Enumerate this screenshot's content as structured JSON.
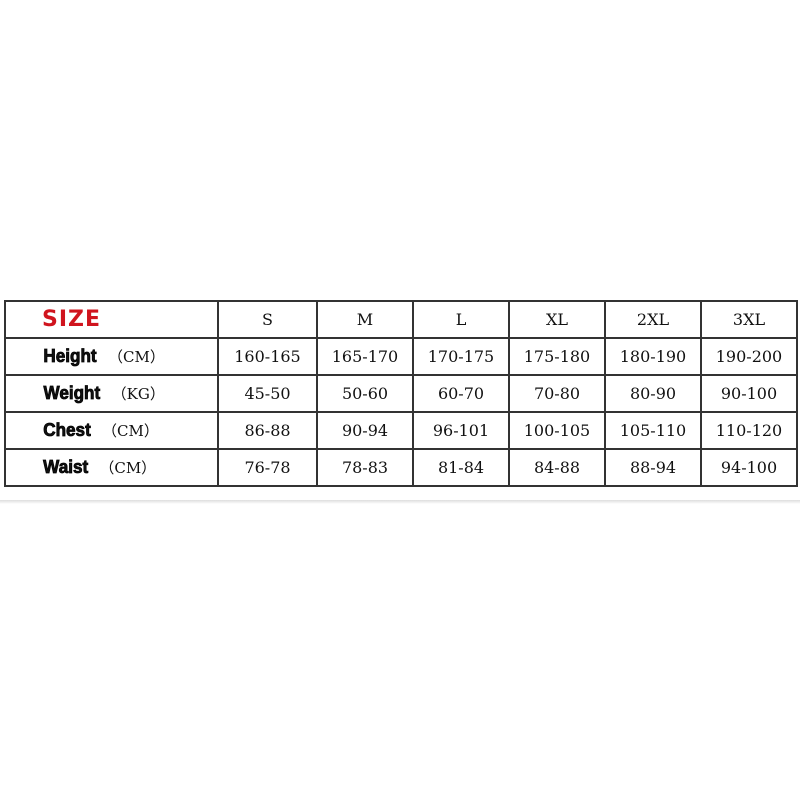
{
  "table": {
    "header_label": "SIZE",
    "header_color": "#d0141e",
    "sizes": [
      "S",
      "M",
      "L",
      "XL",
      "2XL",
      "3XL"
    ],
    "rows": [
      {
        "name": "Height",
        "unit": "（CM）",
        "values": [
          "160-165",
          "165-170",
          "170-175",
          "175-180",
          "180-190",
          "190-200"
        ]
      },
      {
        "name": "Weight",
        "unit": "（KG）",
        "values": [
          "45-50",
          "50-60",
          "60-70",
          "70-80",
          "80-90",
          "90-100"
        ]
      },
      {
        "name": "Chest",
        "unit": "（CM）",
        "values": [
          "86-88",
          "90-94",
          "96-101",
          "100-105",
          "105-110",
          "110-120"
        ]
      },
      {
        "name": "Waist",
        "unit": "（CM）",
        "values": [
          "76-78",
          "78-83",
          "81-84",
          "84-88",
          "88-94",
          "94-100"
        ]
      }
    ]
  }
}
